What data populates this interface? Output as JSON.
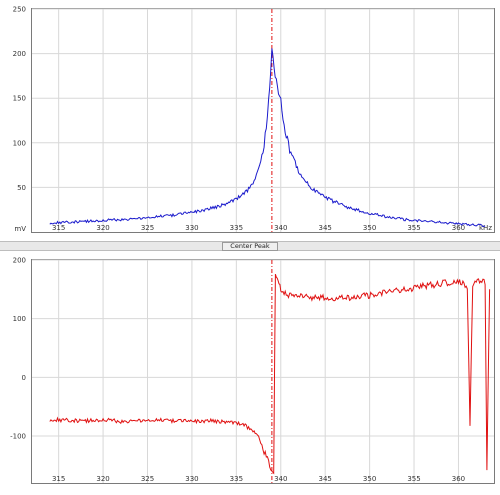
{
  "controls": {
    "center_peak_label": "Center Peak"
  },
  "colors": {
    "top_trace": "#1a1acc",
    "bottom_trace": "#e01010",
    "marker": "#e01010",
    "grid": "#d8d8d8"
  },
  "chart_data": [
    {
      "type": "line",
      "title": "",
      "xlabel": "kHz",
      "ylabel": "mV",
      "xlim": [
        312,
        364
      ],
      "ylim": [
        0,
        250
      ],
      "yticks": [
        50,
        100,
        150,
        200,
        250
      ],
      "ytick_labels": [
        "50",
        "100",
        "150",
        "200",
        "250"
      ],
      "xticks": [
        315,
        320,
        325,
        330,
        335,
        340,
        345,
        350,
        355,
        360
      ],
      "grid": true,
      "marker_x": 339,
      "series": [
        {
          "x": [
            314,
            316,
            318,
            320,
            322,
            324,
            326,
            328,
            330,
            332,
            334,
            335,
            336,
            337,
            337.5,
            338,
            338.5,
            339,
            339.5,
            340,
            340.5,
            341,
            342,
            343,
            344,
            346,
            348,
            350,
            352,
            354,
            356,
            358,
            360,
            362,
            363
          ],
          "y": [
            10,
            11,
            12,
            13,
            14,
            15,
            17,
            19,
            22,
            26,
            32,
            37,
            44,
            57,
            70,
            90,
            125,
            203,
            170,
            145,
            115,
            92,
            68,
            54,
            45,
            34,
            26,
            21,
            17,
            14,
            12,
            11,
            9,
            8,
            7
          ]
        }
      ]
    },
    {
      "type": "line",
      "title": "",
      "xlabel": "",
      "ylabel": "",
      "xlim": [
        312,
        364
      ],
      "ylim": [
        -180,
        200
      ],
      "yticks": [
        -100,
        0,
        100,
        200
      ],
      "ytick_labels": [
        "-100",
        "0",
        "100",
        "200"
      ],
      "xticks": [
        315,
        320,
        325,
        330,
        335,
        340,
        345,
        350,
        355,
        360
      ],
      "grid": true,
      "marker_x": 339,
      "series": [
        {
          "x": [
            314,
            316,
            318,
            320,
            322,
            324,
            326,
            328,
            330,
            332,
            334,
            335,
            336,
            337,
            337.5,
            338,
            338.5,
            339,
            339.2,
            339.4,
            339.6,
            339.8,
            340,
            340.5,
            341,
            342,
            344,
            346,
            348,
            350,
            352,
            354,
            356,
            358,
            360,
            360.5,
            361,
            361.3,
            361.6,
            362,
            362.5,
            363,
            363.2,
            363.5
          ],
          "y": [
            -72,
            -73,
            -74,
            -72,
            -75,
            -74,
            -73,
            -74,
            -75,
            -74,
            -76,
            -78,
            -82,
            -92,
            -102,
            -122,
            -140,
            -162,
            -165,
            170,
            175,
            165,
            150,
            142,
            140,
            138,
            136,
            135,
            136,
            140,
            145,
            150,
            155,
            160,
            165,
            160,
            150,
            -80,
            155,
            162,
            165,
            160,
            -160,
            150
          ]
        }
      ]
    }
  ]
}
